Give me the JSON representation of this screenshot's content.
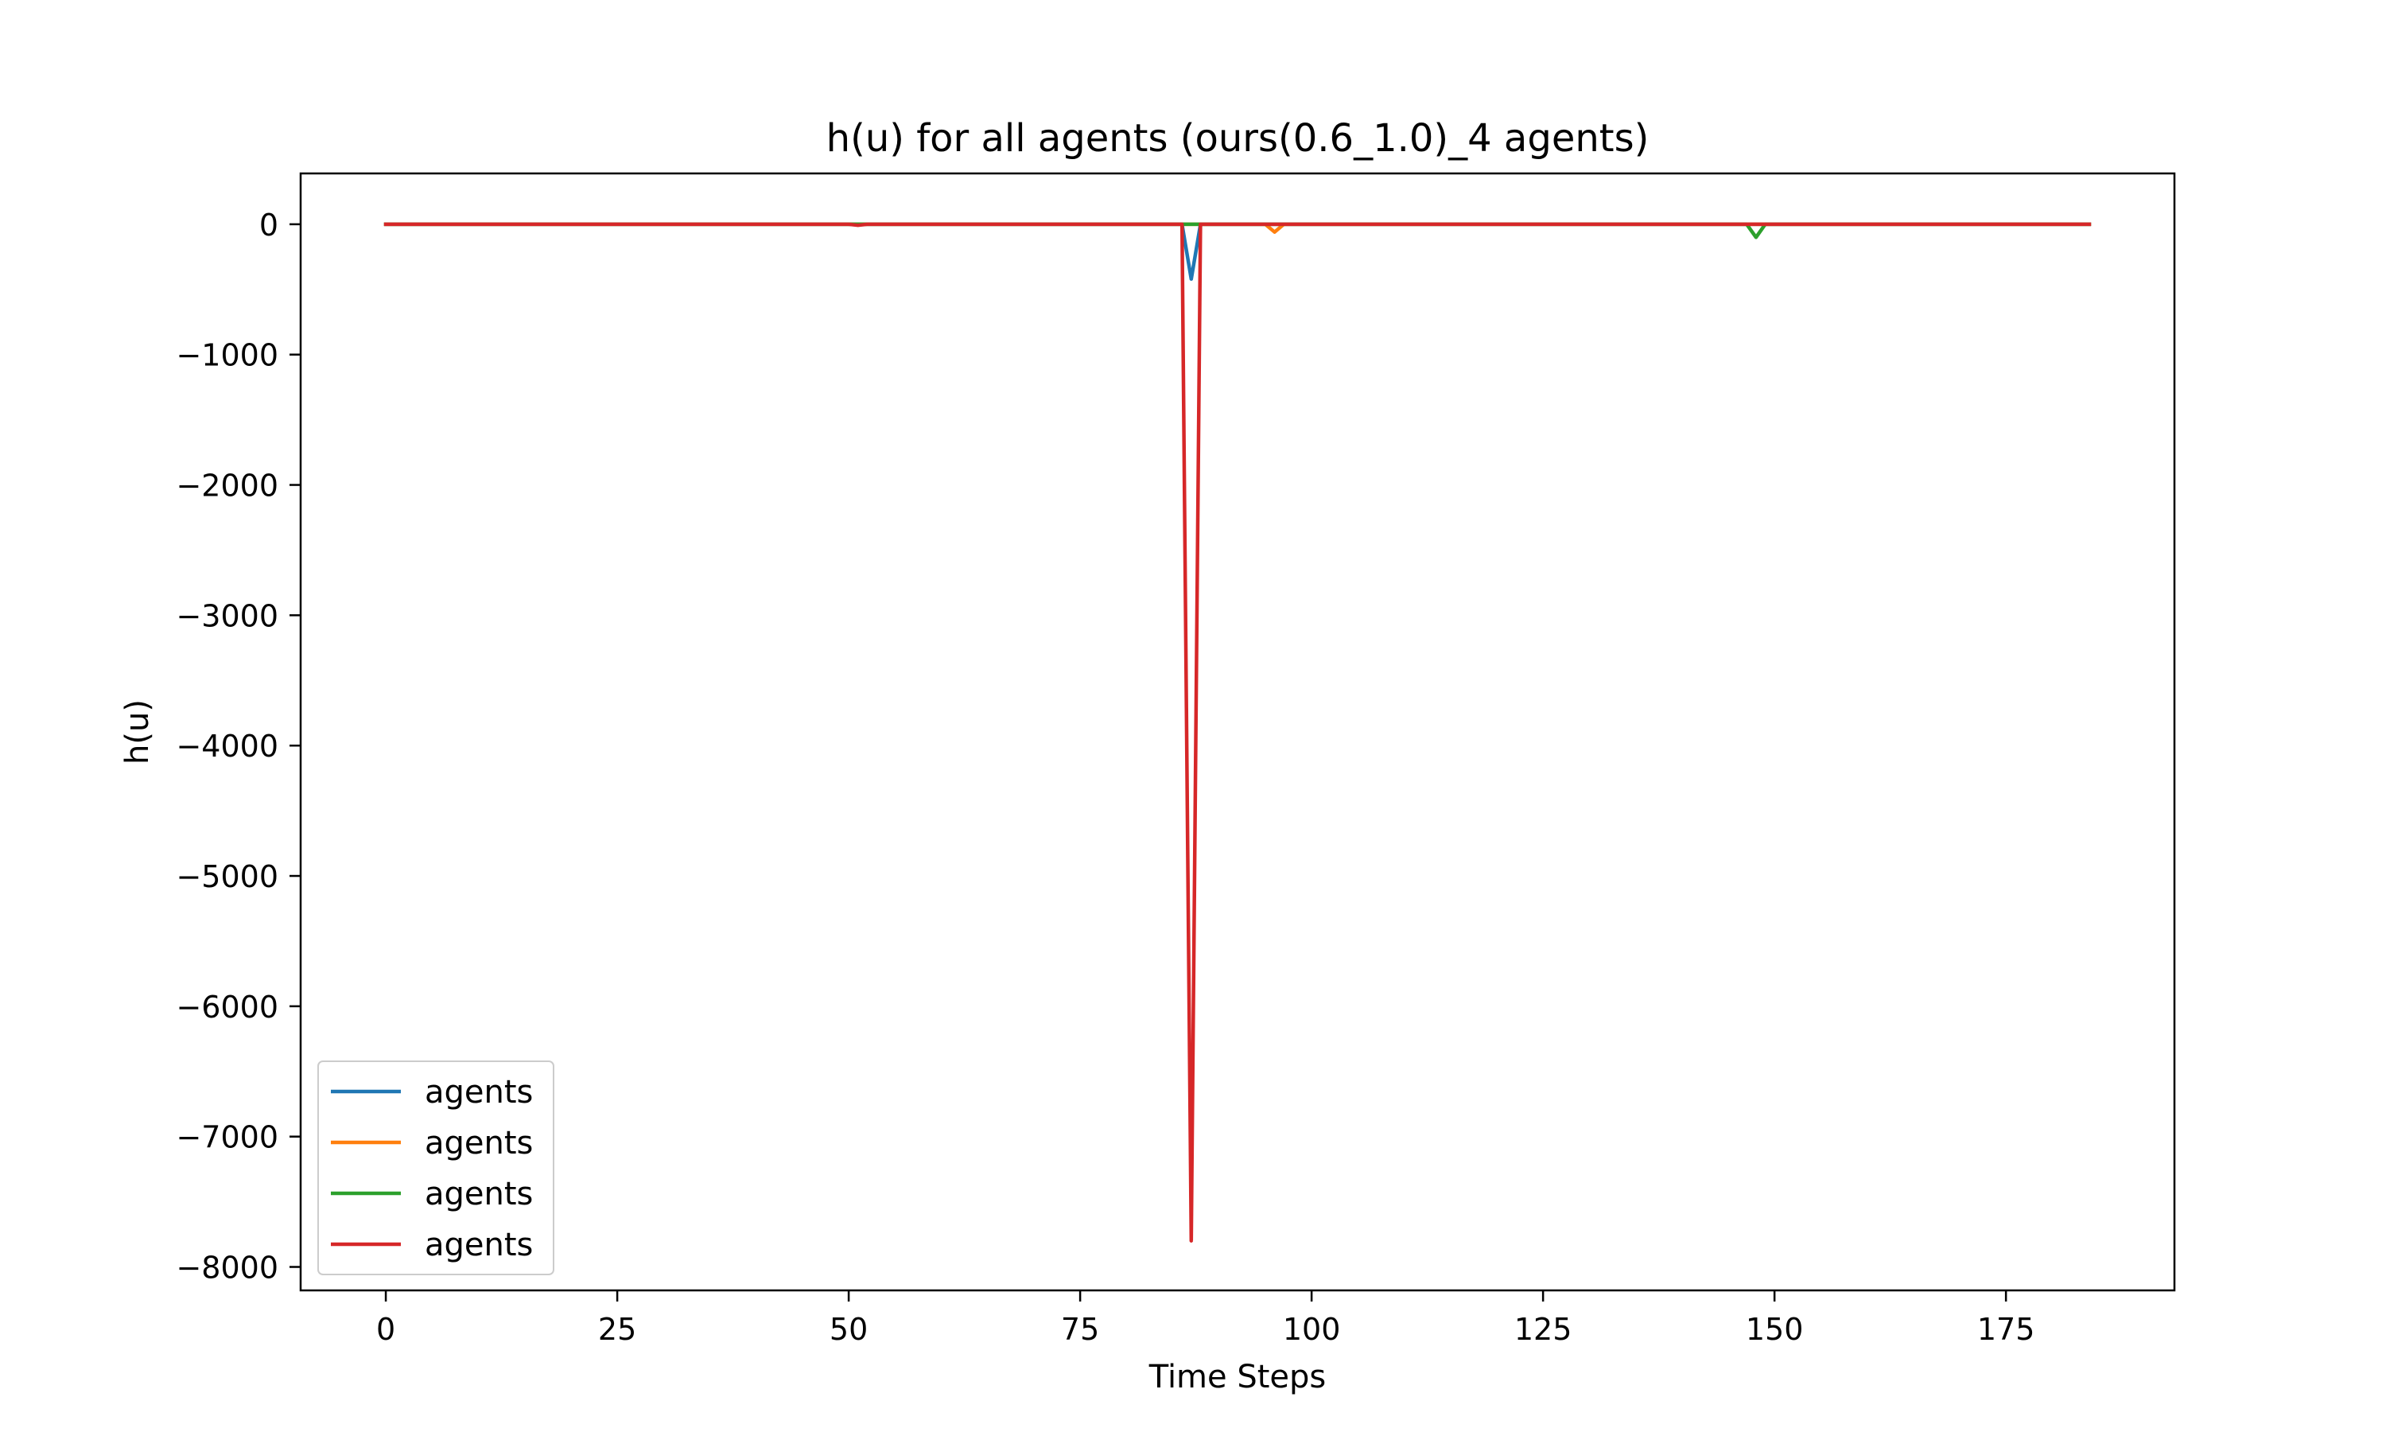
{
  "chart_data": {
    "type": "line",
    "title": "h(u) for all agents (ours(0.6_1.0)_4 agents)",
    "xlabel": "Time Steps",
    "ylabel": "h(u)",
    "xlim": [
      -9.2,
      193.2
    ],
    "ylim": [
      -8180,
      390
    ],
    "x_ticks": [
      0,
      25,
      50,
      75,
      100,
      125,
      150,
      175
    ],
    "x_tick_labels": [
      "0",
      "25",
      "50",
      "75",
      "100",
      "125",
      "150",
      "175"
    ],
    "y_ticks": [
      0,
      -1000,
      -2000,
      -3000,
      -4000,
      -5000,
      -6000,
      -7000,
      -8000
    ],
    "y_tick_labels": [
      "0",
      "−1000",
      "−2000",
      "−3000",
      "−4000",
      "−5000",
      "−6000",
      "−7000",
      "−8000"
    ],
    "grid": false,
    "legend_position": "lower-left",
    "x_range": [
      0,
      184
    ],
    "series": [
      {
        "name": "agents",
        "color": "#1f77b4",
        "points": [
          [
            0,
            0
          ],
          [
            86,
            0
          ],
          [
            87,
            -420
          ],
          [
            88,
            0
          ],
          [
            184,
            0
          ]
        ]
      },
      {
        "name": "agents",
        "color": "#ff7f0e",
        "points": [
          [
            0,
            0
          ],
          [
            95,
            0
          ],
          [
            96,
            -60
          ],
          [
            97,
            0
          ],
          [
            184,
            0
          ]
        ]
      },
      {
        "name": "agents",
        "color": "#2ca02c",
        "points": [
          [
            0,
            0
          ],
          [
            147,
            0
          ],
          [
            148,
            -100
          ],
          [
            149,
            0
          ],
          [
            184,
            0
          ]
        ]
      },
      {
        "name": "agents",
        "color": "#d62728",
        "points": [
          [
            0,
            0
          ],
          [
            50,
            0
          ],
          [
            51,
            -8
          ],
          [
            52,
            0
          ],
          [
            86,
            0
          ],
          [
            87,
            -7800
          ],
          [
            88,
            0
          ],
          [
            184,
            0
          ]
        ]
      }
    ]
  }
}
